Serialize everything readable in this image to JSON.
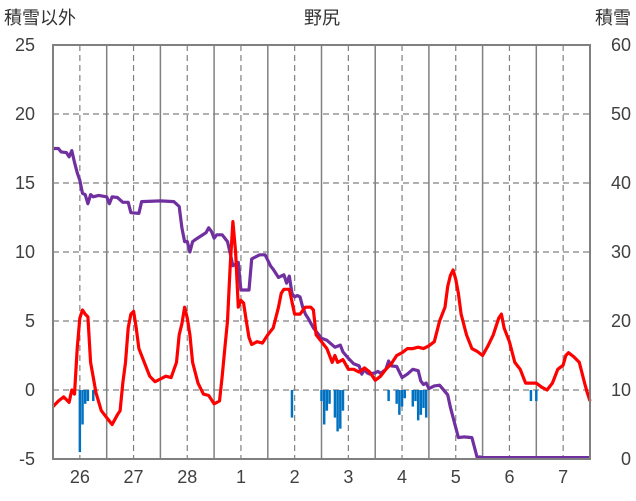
{
  "chart_data": {
    "type": "line",
    "title": "野尻",
    "left_axis": {
      "label": "積雪以外",
      "ylim": [
        -5,
        25
      ],
      "ticks": [
        -5,
        0,
        5,
        10,
        15,
        20,
        25
      ]
    },
    "right_axis": {
      "label": "積雪",
      "ylim": [
        0,
        60
      ],
      "ticks": [
        0,
        10,
        20,
        30,
        40,
        50,
        60
      ]
    },
    "x_axis": {
      "range_days": [
        25.5,
        35.5
      ],
      "tick_labels": [
        "26",
        "27",
        "28",
        "1",
        "2",
        "3",
        "4",
        "5",
        "6",
        "7"
      ],
      "tick_positions_days": [
        26,
        27,
        28,
        29,
        30,
        31,
        32,
        33,
        34,
        35
      ]
    },
    "grid": true,
    "colors": {
      "temperature": "#ff0000",
      "snow_depth": "#7030a0",
      "precipitation": "#0070c0",
      "grid": "#808080"
    },
    "series": [
      {
        "axis": "left",
        "values": [
          [
            25.5,
            -1.2
          ],
          [
            25.6,
            -0.8
          ],
          [
            25.7,
            -0.5
          ],
          [
            25.8,
            -0.9
          ],
          [
            25.85,
            0
          ],
          [
            25.9,
            -0.3
          ],
          [
            25.95,
            3
          ],
          [
            26.0,
            5.2
          ],
          [
            26.05,
            5.8
          ],
          [
            26.1,
            5.5
          ],
          [
            26.15,
            5.3
          ],
          [
            26.2,
            2
          ],
          [
            26.3,
            -0.2
          ],
          [
            26.4,
            -1.5
          ],
          [
            26.5,
            -2
          ],
          [
            26.6,
            -2.5
          ],
          [
            26.7,
            -1.8
          ],
          [
            26.75,
            -1.5
          ],
          [
            26.8,
            0.5
          ],
          [
            26.85,
            2
          ],
          [
            26.9,
            4.5
          ],
          [
            26.95,
            5.5
          ],
          [
            27.0,
            5.7
          ],
          [
            27.05,
            4.5
          ],
          [
            27.1,
            3
          ],
          [
            27.2,
            2
          ],
          [
            27.3,
            1
          ],
          [
            27.4,
            0.6
          ],
          [
            27.5,
            0.8
          ],
          [
            27.6,
            1
          ],
          [
            27.7,
            0.9
          ],
          [
            27.8,
            2
          ],
          [
            27.85,
            4
          ],
          [
            27.9,
            4.8
          ],
          [
            27.95,
            6
          ],
          [
            28.0,
            5.2
          ],
          [
            28.05,
            4
          ],
          [
            28.1,
            2
          ],
          [
            28.2,
            0.5
          ],
          [
            28.3,
            -0.3
          ],
          [
            28.4,
            -0.4
          ],
          [
            28.5,
            -1
          ],
          [
            28.6,
            -0.8
          ],
          [
            28.65,
            1
          ],
          [
            28.7,
            3
          ],
          [
            28.75,
            5
          ],
          [
            28.8,
            9
          ],
          [
            28.85,
            12.2
          ],
          [
            28.9,
            10
          ],
          [
            28.95,
            6
          ],
          [
            29.0,
            6.5
          ],
          [
            29.05,
            6.3
          ],
          [
            29.1,
            5
          ],
          [
            29.15,
            3.8
          ],
          [
            29.2,
            3.3
          ],
          [
            29.3,
            3.5
          ],
          [
            29.4,
            3.4
          ],
          [
            29.5,
            4
          ],
          [
            29.6,
            4.5
          ],
          [
            29.7,
            6
          ],
          [
            29.75,
            7
          ],
          [
            29.8,
            7.3
          ],
          [
            29.9,
            7.3
          ],
          [
            30.0,
            5.5
          ],
          [
            30.1,
            5.5
          ],
          [
            30.2,
            6
          ],
          [
            30.3,
            6
          ],
          [
            30.35,
            5.8
          ],
          [
            30.4,
            4
          ],
          [
            30.5,
            3.5
          ],
          [
            30.6,
            3
          ],
          [
            30.7,
            2
          ],
          [
            30.75,
            2.5
          ],
          [
            30.8,
            2
          ],
          [
            30.9,
            2.2
          ],
          [
            31.0,
            1.5
          ],
          [
            31.1,
            1.5
          ],
          [
            31.2,
            1.3
          ],
          [
            31.3,
            1.6
          ],
          [
            31.4,
            1.3
          ],
          [
            31.5,
            0.7
          ],
          [
            31.6,
            1
          ],
          [
            31.7,
            1.5
          ],
          [
            31.8,
            1.9
          ],
          [
            31.9,
            2.5
          ],
          [
            32.0,
            2.7
          ],
          [
            32.1,
            3
          ],
          [
            32.2,
            3
          ],
          [
            32.3,
            3.1
          ],
          [
            32.4,
            3
          ],
          [
            32.5,
            3.2
          ],
          [
            32.6,
            3.5
          ],
          [
            32.7,
            5
          ],
          [
            32.8,
            6
          ],
          [
            32.85,
            7.5
          ],
          [
            32.9,
            8.3
          ],
          [
            32.95,
            8.7
          ],
          [
            33.0,
            8
          ],
          [
            33.05,
            7
          ],
          [
            33.1,
            5.5
          ],
          [
            33.2,
            4
          ],
          [
            33.3,
            3
          ],
          [
            33.4,
            2.8
          ],
          [
            33.5,
            2.5
          ],
          [
            33.6,
            3.2
          ],
          [
            33.7,
            4
          ],
          [
            33.8,
            5.2
          ],
          [
            33.85,
            5.5
          ],
          [
            33.9,
            4.5
          ],
          [
            34.0,
            3.5
          ],
          [
            34.1,
            2
          ],
          [
            34.2,
            1.5
          ],
          [
            34.3,
            0.5
          ],
          [
            34.4,
            0.5
          ],
          [
            34.5,
            0.5
          ],
          [
            34.6,
            0.2
          ],
          [
            34.7,
            0
          ],
          [
            34.8,
            0.5
          ],
          [
            34.9,
            1.5
          ],
          [
            35.0,
            1.8
          ],
          [
            35.05,
            2.5
          ],
          [
            35.1,
            2.7
          ],
          [
            35.2,
            2.4
          ],
          [
            35.3,
            2
          ],
          [
            35.4,
            0.5
          ],
          [
            35.45,
            -0.2
          ],
          [
            35.5,
            -0.8
          ]
        ]
      },
      {
        "axis": "right",
        "values": [
          [
            25.5,
            45
          ],
          [
            25.6,
            45
          ],
          [
            25.65,
            44.5
          ],
          [
            25.75,
            44.4
          ],
          [
            25.8,
            43.8
          ],
          [
            25.85,
            44.7
          ],
          [
            25.9,
            43
          ],
          [
            25.95,
            41.5
          ],
          [
            26.0,
            40.4
          ],
          [
            26.05,
            38.5
          ],
          [
            26.1,
            38.3
          ],
          [
            26.15,
            37
          ],
          [
            26.2,
            38.3
          ],
          [
            26.25,
            38
          ],
          [
            26.35,
            38.2
          ],
          [
            26.5,
            38
          ],
          [
            26.55,
            37
          ],
          [
            26.6,
            38
          ],
          [
            26.7,
            37.9
          ],
          [
            26.8,
            37.2
          ],
          [
            26.9,
            37.2
          ],
          [
            26.95,
            35.7
          ],
          [
            27.1,
            35.6
          ],
          [
            27.15,
            37.3
          ],
          [
            27.5,
            37.4
          ],
          [
            27.75,
            37.3
          ],
          [
            27.85,
            36.6
          ],
          [
            27.9,
            33.5
          ],
          [
            27.95,
            31.5
          ],
          [
            28.0,
            31.5
          ],
          [
            28.05,
            30
          ],
          [
            28.1,
            31.5
          ],
          [
            28.15,
            31.8
          ],
          [
            28.25,
            32.3
          ],
          [
            28.35,
            32.8
          ],
          [
            28.4,
            33.5
          ],
          [
            28.45,
            33
          ],
          [
            28.5,
            32
          ],
          [
            28.55,
            32.5
          ],
          [
            28.65,
            32.5
          ],
          [
            28.75,
            31.5
          ],
          [
            28.8,
            29.8
          ],
          [
            28.85,
            28
          ],
          [
            28.95,
            28.5
          ],
          [
            29.0,
            24.5
          ],
          [
            29.15,
            24.5
          ],
          [
            29.2,
            29
          ],
          [
            29.35,
            29.6
          ],
          [
            29.45,
            29.6
          ],
          [
            29.55,
            28
          ],
          [
            29.6,
            27.5
          ],
          [
            29.7,
            26.3
          ],
          [
            29.75,
            26.5
          ],
          [
            29.8,
            26.7
          ],
          [
            29.85,
            25.5
          ],
          [
            29.9,
            26.5
          ],
          [
            29.95,
            24
          ],
          [
            30.0,
            23.5
          ],
          [
            30.05,
            23.7
          ],
          [
            30.1,
            23.5
          ],
          [
            30.15,
            22
          ],
          [
            30.2,
            21
          ],
          [
            30.25,
            20.4
          ],
          [
            30.35,
            19
          ],
          [
            30.5,
            17.5
          ],
          [
            30.6,
            17.2
          ],
          [
            30.75,
            16.2
          ],
          [
            30.85,
            16.5
          ],
          [
            30.9,
            15.5
          ],
          [
            31.0,
            14.6
          ],
          [
            31.1,
            13.8
          ],
          [
            31.2,
            13.5
          ],
          [
            31.25,
            12.3
          ],
          [
            31.3,
            13
          ],
          [
            31.35,
            12.5
          ],
          [
            31.4,
            12.3
          ],
          [
            31.5,
            12.5
          ],
          [
            31.55,
            12.7
          ],
          [
            31.6,
            12.4
          ],
          [
            31.7,
            13
          ],
          [
            31.75,
            14.2
          ],
          [
            31.8,
            13.5
          ],
          [
            31.9,
            13.4
          ],
          [
            32.0,
            11.8
          ],
          [
            32.1,
            12.3
          ],
          [
            32.2,
            13
          ],
          [
            32.3,
            12.8
          ],
          [
            32.35,
            11.3
          ],
          [
            32.4,
            10.8
          ],
          [
            32.45,
            11
          ],
          [
            32.5,
            10.2
          ],
          [
            32.6,
            10.6
          ],
          [
            32.7,
            10.7
          ],
          [
            32.85,
            9.3
          ],
          [
            32.9,
            7.5
          ],
          [
            33.05,
            3.1
          ],
          [
            33.15,
            3.2
          ],
          [
            33.3,
            3.1
          ],
          [
            33.4,
            0.2
          ],
          [
            33.45,
            0.3
          ],
          [
            33.5,
            0.2
          ],
          [
            33.9,
            0.2
          ],
          [
            34.5,
            0.2
          ],
          [
            35.0,
            0.2
          ],
          [
            35.5,
            0.2
          ]
        ]
      },
      {
        "axis": "left",
        "values": [
          [
            26.0,
            4.5
          ],
          [
            26.05,
            2.5
          ],
          [
            26.1,
            1
          ],
          [
            26.15,
            0.8
          ],
          [
            26.25,
            0.8
          ],
          [
            29.95,
            2
          ],
          [
            30.5,
            0.8
          ],
          [
            30.55,
            2.5
          ],
          [
            30.6,
            1.5
          ],
          [
            30.65,
            1
          ],
          [
            30.75,
            2
          ],
          [
            30.8,
            3
          ],
          [
            30.85,
            2.8
          ],
          [
            30.9,
            1.5
          ],
          [
            31.75,
            0.8
          ],
          [
            31.9,
            1
          ],
          [
            31.95,
            1.8
          ],
          [
            32.0,
            1.2
          ],
          [
            32.05,
            0.6
          ],
          [
            32.2,
            1.2
          ],
          [
            32.25,
            0.8
          ],
          [
            32.3,
            2.2
          ],
          [
            32.35,
            1.8
          ],
          [
            32.4,
            1.3
          ],
          [
            32.45,
            2
          ],
          [
            34.4,
            0.8
          ],
          [
            34.5,
            0.8
          ]
        ]
      }
    ]
  }
}
